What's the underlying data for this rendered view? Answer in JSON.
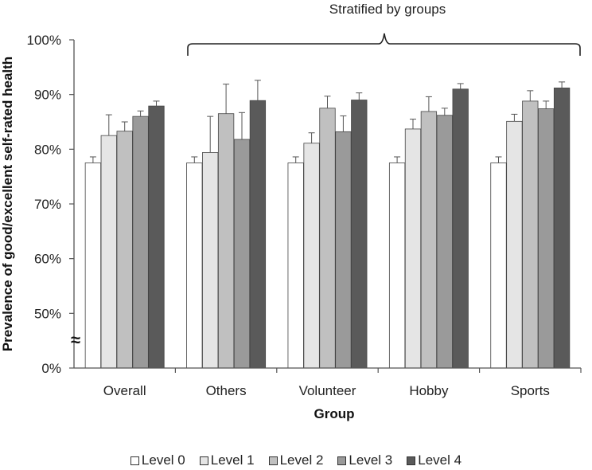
{
  "chart_data": {
    "type": "bar",
    "title": "",
    "xlabel": "Group",
    "ylabel": "Prevalence of good/excellent self-rated health",
    "ylim": [
      0.4,
      1.0
    ],
    "y_ticks": [
      {
        "label": "0%",
        "value": 0.4
      },
      {
        "label": "50%",
        "value": 0.5
      },
      {
        "label": "60%",
        "value": 0.6
      },
      {
        "label": "70%",
        "value": 0.7
      },
      {
        "label": "80%",
        "value": 0.8
      },
      {
        "label": "90%",
        "value": 0.9
      },
      {
        "label": "100%",
        "value": 1.0
      }
    ],
    "axis_break": "≈",
    "categories": [
      "Overall",
      "Others",
      "Volunteer",
      "Hobby",
      "Sports"
    ],
    "annotation": "Stratified by groups",
    "legend_position": "bottom",
    "series": [
      {
        "name": "Level 0",
        "color": "#ffffff",
        "values": [
          0.775,
          0.775,
          0.775,
          0.775,
          0.775
        ],
        "err": [
          0.011,
          0.011,
          0.011,
          0.011,
          0.011
        ]
      },
      {
        "name": "Level 1",
        "color": "#e5e5e5",
        "values": [
          0.825,
          0.794,
          0.811,
          0.837,
          0.851
        ],
        "err": [
          0.038,
          0.066,
          0.019,
          0.018,
          0.013
        ]
      },
      {
        "name": "Level 2",
        "color": "#c0c0c0",
        "values": [
          0.833,
          0.865,
          0.875,
          0.869,
          0.888
        ],
        "err": [
          0.017,
          0.054,
          0.022,
          0.027,
          0.019
        ]
      },
      {
        "name": "Level 3",
        "color": "#9a9a9a",
        "values": [
          0.86,
          0.818,
          0.832,
          0.862,
          0.874
        ],
        "err": [
          0.01,
          0.049,
          0.029,
          0.013,
          0.014
        ]
      },
      {
        "name": "Level 4",
        "color": "#5a5a5a",
        "values": [
          0.879,
          0.889,
          0.89,
          0.91,
          0.912
        ],
        "err": [
          0.009,
          0.037,
          0.013,
          0.01,
          0.011
        ]
      }
    ]
  }
}
